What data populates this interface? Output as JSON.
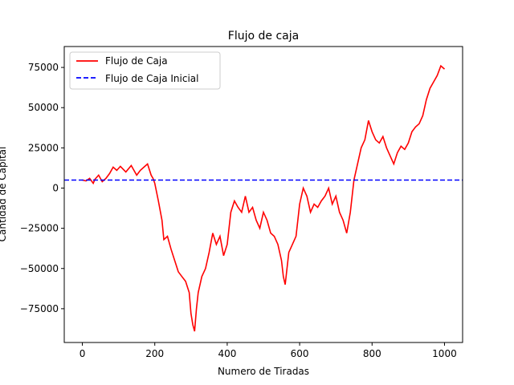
{
  "chart_data": {
    "type": "line",
    "title": "Flujo de caja",
    "xlabel": "Numero de Tiradas",
    "ylabel": "Cantidad de Capital",
    "xlim": [
      -50,
      1050
    ],
    "ylim": [
      -96000,
      88000
    ],
    "xticks": [
      0,
      200,
      400,
      600,
      800,
      1000
    ],
    "yticks": [
      -75000,
      -50000,
      -25000,
      0,
      25000,
      50000,
      75000
    ],
    "legend_position": "upper-left",
    "grid": false,
    "series": [
      {
        "name": "Flujo de Caja",
        "color": "#ff0000",
        "style": "solid",
        "x": [
          0,
          10,
          20,
          30,
          35,
          45,
          55,
          65,
          75,
          85,
          95,
          105,
          120,
          135,
          150,
          160,
          170,
          180,
          190,
          195,
          200,
          210,
          220,
          225,
          235,
          245,
          255,
          265,
          275,
          285,
          295,
          300,
          305,
          310,
          315,
          320,
          330,
          340,
          350,
          360,
          370,
          380,
          390,
          400,
          410,
          420,
          430,
          440,
          450,
          460,
          470,
          480,
          490,
          500,
          510,
          520,
          530,
          540,
          550,
          555,
          560,
          570,
          580,
          590,
          600,
          610,
          620,
          630,
          640,
          650,
          660,
          670,
          680,
          690,
          700,
          710,
          720,
          730,
          740,
          750,
          760,
          770,
          780,
          790,
          800,
          810,
          820,
          830,
          840,
          850,
          860,
          870,
          880,
          890,
          900,
          910,
          920,
          930,
          940,
          950,
          960,
          970,
          980,
          990,
          1000
        ],
        "y": [
          5000,
          4500,
          6000,
          3000,
          5500,
          8000,
          4000,
          6000,
          9000,
          13000,
          11000,
          13500,
          10000,
          14000,
          8000,
          11000,
          13000,
          15000,
          8000,
          6000,
          3000,
          -8000,
          -20000,
          -32000,
          -30000,
          -38000,
          -45000,
          -52000,
          -55000,
          -58000,
          -65000,
          -78000,
          -85000,
          -89000,
          -75000,
          -65000,
          -55000,
          -50000,
          -40000,
          -28000,
          -35000,
          -30000,
          -42000,
          -35000,
          -15000,
          -8000,
          -12000,
          -15000,
          -5000,
          -15000,
          -12000,
          -20000,
          -25000,
          -15000,
          -20000,
          -28000,
          -30000,
          -35000,
          -45000,
          -55000,
          -60000,
          -40000,
          -35000,
          -30000,
          -10000,
          0,
          -5000,
          -15000,
          -10000,
          -12000,
          -8000,
          -5000,
          0,
          -10000,
          -5000,
          -15000,
          -20000,
          -28000,
          -15000,
          5000,
          15000,
          25000,
          30000,
          42000,
          35000,
          30000,
          28000,
          32000,
          25000,
          20000,
          15000,
          22000,
          26000,
          24000,
          28000,
          35000,
          38000,
          40000,
          45000,
          55000,
          62000,
          66000,
          70000,
          76000,
          74000
        ]
      },
      {
        "name": "Flujo de Caja Inicial",
        "color": "#0000ff",
        "style": "dashed",
        "x": [
          -50,
          1050
        ],
        "y": [
          5000,
          5000
        ]
      }
    ]
  }
}
